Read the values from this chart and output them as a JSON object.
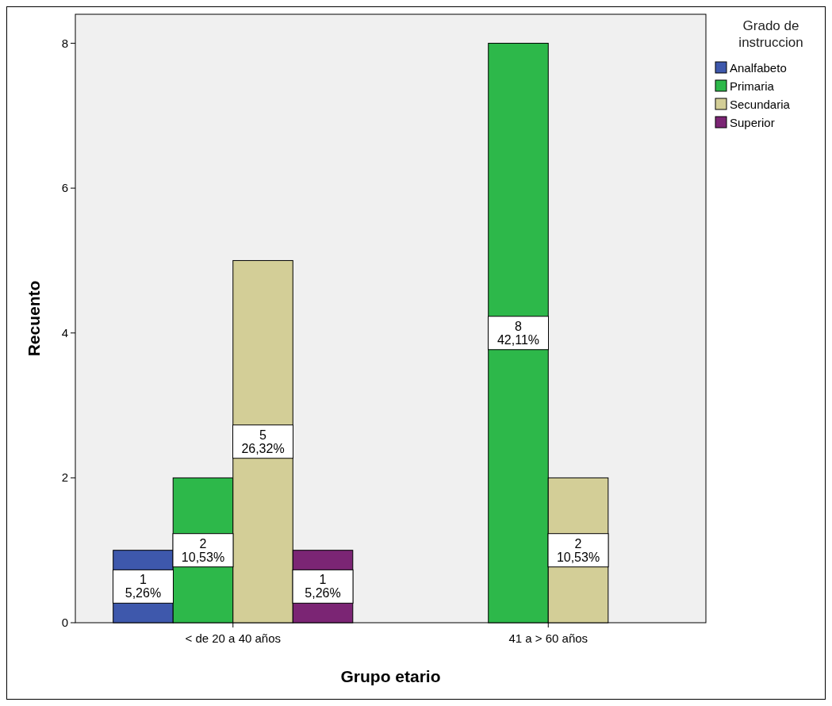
{
  "chart_data": {
    "type": "bar",
    "xlabel": "Grupo etario",
    "ylabel": "Recuento",
    "legend_title": "Grado de instruccion",
    "legend": "right",
    "categories": [
      "< de 20 a 40 años",
      "41 a > 60 años"
    ],
    "series": [
      {
        "name": "Analfabeto",
        "color": "#3e58ac",
        "values": [
          1,
          null
        ],
        "value_labels": [
          "1\n5,26%",
          null
        ]
      },
      {
        "name": "Primaria",
        "color": "#2db84a",
        "values": [
          2,
          8
        ],
        "value_labels": [
          "2\n10,53%",
          "8\n42,11%"
        ]
      },
      {
        "name": "Secundaria",
        "color": "#d3ce97",
        "values": [
          5,
          2
        ],
        "value_labels": [
          "5\n26,32%",
          "2\n10,53%"
        ]
      },
      {
        "name": "Superior",
        "color": "#7b2574",
        "values": [
          1,
          null
        ],
        "value_labels": [
          "1\n5,26%",
          null
        ]
      }
    ],
    "ylim": [
      0,
      8.4
    ],
    "yticks": [
      0,
      2,
      4,
      6,
      8
    ]
  }
}
